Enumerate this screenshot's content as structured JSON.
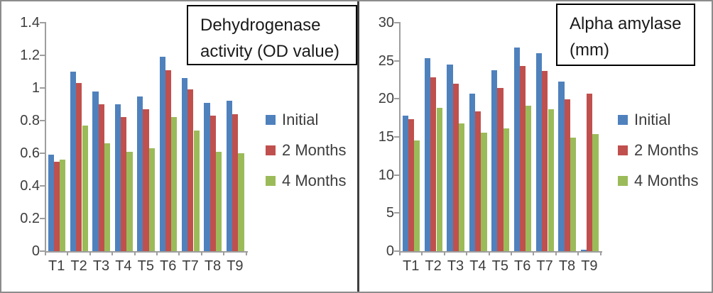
{
  "colors": {
    "axis": "#9e9e9e",
    "text": "#3d3d3d",
    "title_text": "#1a1a1a",
    "outer_border": "#8c8c8c",
    "divider": "#3f3f3f",
    "series_initial": "#4F81BD",
    "series_2_months": "#C0504D",
    "series_4_months": "#9BBB59"
  },
  "chart_data": [
    {
      "type": "bar",
      "title": "Dehydrogenase activity (OD value)",
      "title_lines": [
        "Dehydrogenase",
        "activity (OD value)"
      ],
      "categories": [
        "T1",
        "T2",
        "T3",
        "T4",
        "T5",
        "T6",
        "T7",
        "T8",
        "T9"
      ],
      "series": [
        {
          "name": "Initial",
          "color": "#4F81BD",
          "values": [
            0.59,
            1.1,
            0.98,
            0.9,
            0.95,
            1.19,
            1.06,
            0.91,
            0.92
          ]
        },
        {
          "name": "2 Months",
          "color": "#C0504D",
          "values": [
            0.55,
            1.03,
            0.9,
            0.82,
            0.87,
            1.11,
            0.99,
            0.83,
            0.84
          ]
        },
        {
          "name": "4 Months",
          "color": "#9BBB59",
          "values": [
            0.56,
            0.77,
            0.66,
            0.61,
            0.63,
            0.82,
            0.74,
            0.61,
            0.6
          ]
        }
      ],
      "xlabel": "",
      "ylabel": "",
      "ylim": [
        0,
        1.4
      ],
      "ytick_values": [
        0,
        0.2,
        0.4,
        0.6,
        0.8,
        1,
        1.2,
        1.4
      ],
      "ytick_labels": [
        "0",
        "0.2",
        "0.4",
        "0.6",
        "0.8",
        "1",
        "1.2",
        "1.4"
      ],
      "grid": false,
      "legend_position": "right"
    },
    {
      "type": "bar",
      "title": "Alpha amylase (mm)",
      "title_lines": [
        "Alpha amylase",
        "(mm)"
      ],
      "categories": [
        "T1",
        "T2",
        "T3",
        "T4",
        "T5",
        "T6",
        "T7",
        "T8",
        "T9"
      ],
      "series": [
        {
          "name": "Initial",
          "color": "#4F81BD",
          "values": [
            17.8,
            25.3,
            24.5,
            20.7,
            23.8,
            26.7,
            26.0,
            22.3,
            0.15
          ]
        },
        {
          "name": "2 Months",
          "color": "#C0504D",
          "values": [
            17.3,
            22.8,
            22.0,
            18.4,
            21.4,
            24.3,
            23.7,
            19.9,
            20.7
          ]
        },
        {
          "name": "4 Months",
          "color": "#9BBB59",
          "values": [
            14.5,
            18.8,
            16.8,
            15.6,
            16.1,
            19.1,
            18.6,
            14.9,
            15.4
          ]
        }
      ],
      "xlabel": "",
      "ylabel": "",
      "ylim": [
        0,
        30
      ],
      "ytick_values": [
        0,
        5,
        10,
        15,
        20,
        25,
        30
      ],
      "ytick_labels": [
        "0",
        "5",
        "10",
        "15",
        "20",
        "25",
        "30"
      ],
      "grid": false,
      "legend_position": "right"
    }
  ]
}
